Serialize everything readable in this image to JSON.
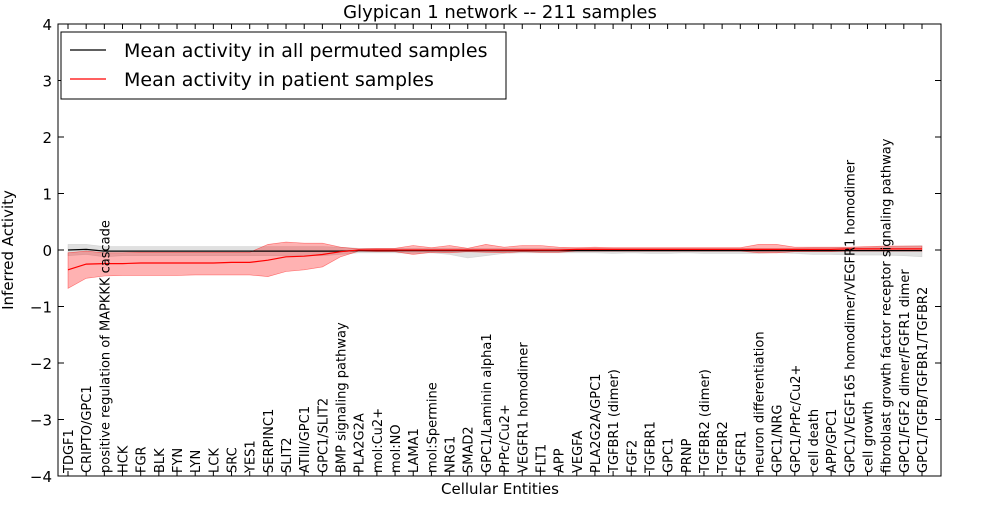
{
  "chart_data": {
    "type": "line",
    "title": "Glypican 1 network -- 211 samples",
    "xlabel": "Cellular Entities",
    "ylabel": "Inferred Activity",
    "ylim": [
      -4,
      4
    ],
    "yticks": [
      -4,
      -3,
      -2,
      -1,
      0,
      1,
      2,
      3,
      4
    ],
    "ytick_labels": [
      "−4",
      "−3",
      "−2",
      "−1",
      "0",
      "1",
      "2",
      "3",
      "4"
    ],
    "grid": false,
    "legend_position": "top-left",
    "categories": [
      "TDGF1",
      "CRIPTO/GPC1",
      "positive regulation of MAPKKK cascade",
      "HCK",
      "FGR",
      "BLK",
      "FYN",
      "LYN",
      "LCK",
      "SRC",
      "YES1",
      "SERPINC1",
      "SLIT2",
      "ATIII/GPC1",
      "GPC1/SLIT2",
      "BMP signaling pathway",
      "PLA2G2A",
      "mol:Cu2+",
      "mol:NO",
      "LAMA1",
      "mol:Spermine",
      "NRG1",
      "SMAD2",
      "GPC1/Laminin alpha1",
      "PrPc/Cu2+",
      "VEGFR1 homodimer",
      "FLT1",
      "APP",
      "VEGFA",
      "PLA2G2A/GPC1",
      "TGFBR1 (dimer)",
      "FGF2",
      "TGFBR1",
      "GPC1",
      "PRNP",
      "TGFBR2 (dimer)",
      "TGFBR2",
      "FGFR1",
      "neuron differentiation",
      "GPC1/NRG",
      "GPC1/PrPc/Cu2+",
      "cell death",
      "APP/GPC1",
      "GPC1/VEGF165 homodimer/VEGFR1 homodimer",
      "cell growth",
      "fibroblast growth factor receptor signaling pathway",
      "GPC1/FGF2 dimer/FGFR1 dimer",
      "GPC1/TGFB/TGFBR1/TGFBR2"
    ],
    "series": [
      {
        "name": "Mean activity in all permuted samples",
        "color": "#000000",
        "band_color": "#bbbbbb",
        "mean": [
          0.0,
          0.01,
          -0.02,
          -0.02,
          -0.02,
          -0.02,
          -0.02,
          -0.02,
          -0.02,
          -0.02,
          -0.02,
          -0.02,
          -0.02,
          -0.02,
          -0.02,
          -0.02,
          -0.01,
          -0.01,
          -0.01,
          -0.01,
          -0.01,
          -0.01,
          -0.01,
          -0.01,
          -0.01,
          -0.01,
          -0.01,
          -0.01,
          -0.01,
          -0.01,
          -0.01,
          -0.01,
          -0.01,
          -0.01,
          -0.01,
          -0.01,
          -0.01,
          -0.01,
          -0.01,
          -0.01,
          -0.01,
          -0.01,
          -0.01,
          -0.01,
          -0.01,
          -0.01,
          -0.01,
          -0.01
        ],
        "lower": [
          -0.1,
          -0.08,
          -0.12,
          -0.1,
          -0.1,
          -0.1,
          -0.1,
          -0.1,
          -0.1,
          -0.1,
          -0.1,
          -0.1,
          -0.1,
          -0.1,
          -0.1,
          -0.08,
          -0.05,
          -0.05,
          -0.05,
          -0.06,
          -0.05,
          -0.08,
          -0.14,
          -0.1,
          -0.06,
          -0.05,
          -0.05,
          -0.05,
          -0.05,
          -0.05,
          -0.06,
          -0.05,
          -0.06,
          -0.06,
          -0.05,
          -0.06,
          -0.06,
          -0.06,
          -0.06,
          -0.05,
          -0.06,
          -0.08,
          -0.08,
          -0.09,
          -0.09,
          -0.09,
          -0.1,
          -0.12
        ],
        "upper": [
          0.1,
          0.1,
          0.06,
          0.06,
          0.06,
          0.06,
          0.06,
          0.06,
          0.06,
          0.06,
          0.06,
          0.06,
          0.06,
          0.06,
          0.06,
          0.05,
          0.03,
          0.03,
          0.03,
          0.03,
          0.03,
          0.03,
          0.03,
          0.03,
          0.03,
          0.03,
          0.03,
          0.03,
          0.03,
          0.03,
          0.03,
          0.03,
          0.03,
          0.03,
          0.03,
          0.03,
          0.03,
          0.03,
          0.03,
          0.03,
          0.03,
          0.04,
          0.04,
          0.05,
          0.05,
          0.06,
          0.07,
          0.08
        ]
      },
      {
        "name": "Mean activity in patient samples",
        "color": "#ff0000",
        "band_color": "#ff0000",
        "mean": [
          -0.35,
          -0.25,
          -0.24,
          -0.24,
          -0.23,
          -0.23,
          -0.23,
          -0.23,
          -0.23,
          -0.22,
          -0.22,
          -0.18,
          -0.12,
          -0.11,
          -0.08,
          -0.03,
          0.0,
          0.0,
          0.0,
          0.0,
          0.0,
          0.0,
          0.0,
          0.0,
          0.0,
          0.0,
          0.0,
          0.0,
          0.01,
          0.01,
          0.01,
          0.01,
          0.01,
          0.01,
          0.01,
          0.01,
          0.01,
          0.01,
          0.01,
          0.01,
          0.01,
          0.01,
          0.01,
          0.02,
          0.02,
          0.02,
          0.02,
          0.02
        ],
        "lower": [
          -0.68,
          -0.5,
          -0.46,
          -0.45,
          -0.45,
          -0.45,
          -0.45,
          -0.44,
          -0.44,
          -0.44,
          -0.44,
          -0.47,
          -0.38,
          -0.35,
          -0.3,
          -0.12,
          -0.02,
          -0.03,
          -0.03,
          -0.08,
          -0.04,
          -0.05,
          -0.03,
          -0.04,
          -0.05,
          -0.03,
          -0.04,
          -0.04,
          -0.02,
          -0.02,
          -0.02,
          -0.02,
          -0.02,
          -0.02,
          -0.02,
          -0.02,
          -0.02,
          -0.02,
          -0.05,
          -0.05,
          -0.03,
          -0.03,
          -0.03,
          -0.02,
          -0.02,
          -0.02,
          -0.02,
          -0.02
        ],
        "upper": [
          -0.05,
          -0.02,
          -0.05,
          -0.05,
          -0.04,
          -0.04,
          -0.04,
          -0.04,
          -0.04,
          -0.04,
          -0.04,
          0.1,
          0.14,
          0.12,
          0.12,
          0.05,
          0.02,
          0.03,
          0.03,
          0.08,
          0.04,
          0.08,
          0.03,
          0.1,
          0.05,
          0.08,
          0.08,
          0.05,
          0.04,
          0.05,
          0.04,
          0.04,
          0.04,
          0.04,
          0.04,
          0.04,
          0.04,
          0.04,
          0.1,
          0.1,
          0.05,
          0.05,
          0.05,
          0.05,
          0.06,
          0.07,
          0.07,
          0.07
        ]
      }
    ]
  }
}
